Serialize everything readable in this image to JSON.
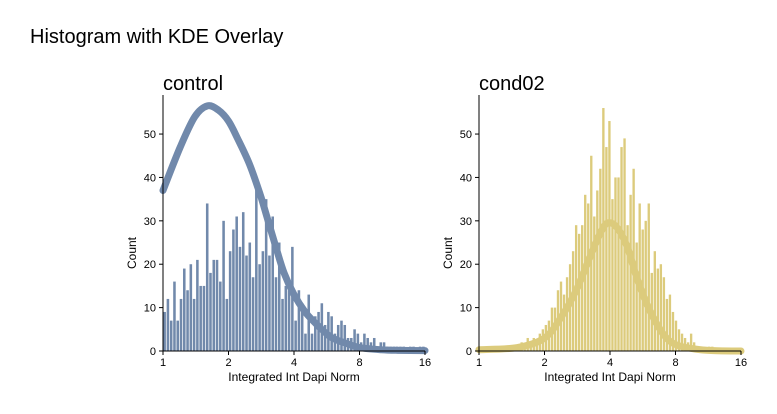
{
  "figure": {
    "title": "Histogram with KDE Overlay"
  },
  "chart_data": [
    {
      "type": "bar",
      "title": "control",
      "xlabel": "Integrated Int Dapi Norm",
      "ylabel": "Count",
      "x_scale": "log2",
      "xlim": [
        1,
        16
      ],
      "ylim": [
        0,
        59
      ],
      "x_ticks": [
        1,
        2,
        4,
        8,
        16
      ],
      "x_tick_labels": [
        "1",
        "2",
        "4",
        "8",
        "16"
      ],
      "y_ticks": [
        0,
        10,
        20,
        30,
        40,
        50
      ],
      "y_tick_labels": [
        "0",
        "10",
        "20",
        "30",
        "40",
        "50"
      ],
      "color": "#7189ab",
      "grid": false,
      "bin_range": [
        1,
        16
      ],
      "values": [
        9,
        12,
        7,
        16,
        7,
        12,
        19,
        14,
        20,
        12,
        21,
        15,
        15,
        34,
        18,
        21,
        21,
        16,
        30,
        12,
        23,
        28,
        31,
        24,
        32,
        22,
        25,
        17,
        39,
        20,
        23,
        35,
        22,
        31,
        17,
        25,
        12,
        15,
        14,
        24,
        7,
        14,
        11,
        4,
        13,
        4,
        8,
        9,
        11,
        6,
        9,
        8,
        4,
        6,
        7,
        6,
        3,
        3,
        5,
        4,
        2,
        4,
        3,
        2,
        3,
        1,
        2,
        2,
        1,
        1,
        1,
        1,
        1,
        1,
        0,
        1,
        1,
        0,
        1,
        1
      ],
      "kde": {
        "x": [
          1,
          1.2,
          1.4,
          1.6,
          1.8,
          2,
          2.2,
          2.5,
          2.8,
          3,
          3.3,
          3.6,
          4,
          4.5,
          5,
          5.5,
          6,
          7,
          8,
          10,
          12,
          16
        ],
        "y": [
          37,
          47,
          54,
          56.5,
          55.5,
          53,
          49,
          43,
          36,
          31,
          24,
          18,
          13,
          9,
          6.5,
          4.5,
          3,
          1.7,
          0.8,
          0.3,
          0.15,
          0.1
        ]
      }
    },
    {
      "type": "bar",
      "title": "cond02",
      "xlabel": "Integrated Int Dapi Norm",
      "ylabel": "Count",
      "x_scale": "log2",
      "xlim": [
        1,
        16
      ],
      "ylim": [
        0,
        59
      ],
      "x_ticks": [
        1,
        2,
        4,
        8,
        16
      ],
      "x_tick_labels": [
        "1",
        "2",
        "4",
        "8",
        "16"
      ],
      "y_ticks": [
        0,
        10,
        20,
        30,
        40,
        50
      ],
      "y_tick_labels": [
        "0",
        "10",
        "20",
        "30",
        "40",
        "50"
      ],
      "color": "#dccb7c",
      "grid": false,
      "bin_range": [
        1.45,
        12
      ],
      "values": [
        1,
        0,
        2,
        1,
        3,
        2,
        3,
        2,
        4,
        5,
        6,
        7,
        10,
        10,
        14,
        16,
        13,
        17,
        20,
        23,
        29,
        27,
        29,
        36,
        34,
        45,
        31,
        37,
        42,
        56,
        47,
        53,
        35,
        40,
        40,
        47,
        49,
        29,
        36,
        42,
        25,
        34,
        28,
        30,
        34,
        18,
        23,
        19,
        20,
        17,
        12,
        13,
        9,
        7,
        5,
        4,
        3,
        2,
        4,
        2,
        1,
        1,
        1,
        0,
        1,
        1
      ],
      "kde": {
        "x": [
          1,
          1.5,
          2,
          2.4,
          2.8,
          3.2,
          3.6,
          3.9,
          4.3,
          4.8,
          5.3,
          6,
          7,
          8,
          10,
          12,
          16
        ],
        "y": [
          0.3,
          0.8,
          3,
          8,
          14,
          21,
          27,
          29.5,
          28.5,
          24,
          17,
          10,
          4,
          1.5,
          0.4,
          0.1,
          0
        ]
      }
    }
  ]
}
